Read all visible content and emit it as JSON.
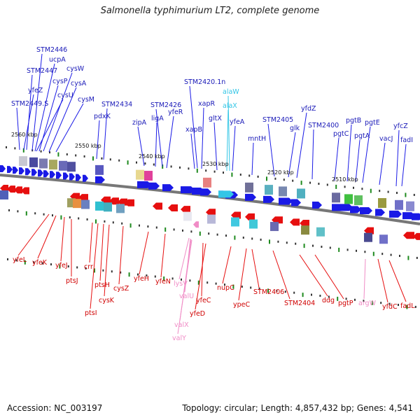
{
  "title": "Salmonella typhimurium LT2, complete genome",
  "footer": {
    "accession": "Accession: NC_003197",
    "summary": "Topology: circular; Length: 4,857,432 bp; Genes: 4,541"
  },
  "colors": {
    "forward": "#1a1ae6",
    "reverse": "#e60f0f",
    "trna": "#33c6e6",
    "trna_rev": "#f08cc6",
    "backbone": "#777777",
    "marker_green": "#1f8a1f"
  },
  "kbp_ticks": [
    "2560 kbp",
    "2550 kbp",
    "2540 kbp",
    "2530 kbp",
    "2520 kbp",
    "2510 kbp"
  ],
  "top_labels": [
    "STM2446",
    "ucpA",
    "STM2447",
    "cysW",
    "yfeZ",
    "cysP",
    "cysA",
    "cysU",
    "STM2449.S",
    "cysM",
    "pdxK",
    "STM2434",
    "STM2426",
    "yfeR",
    "zipA",
    "ligA",
    "STM2420.1n",
    "xapR",
    "xapB",
    "gltX",
    "alaW",
    "alaX",
    "yfeA",
    "mntH",
    "STM2405",
    "glk",
    "yfdZ",
    "STM2400",
    "pgtC",
    "pgtB",
    "pgtA",
    "pgtE",
    "vacJ",
    "yfcZ",
    "fadI"
  ],
  "bottom_labels": [
    "yfeL",
    "yfeK",
    "yfeJ",
    "ptsJ",
    "crr",
    "ptsI",
    "ptsH",
    "cysK",
    "cysZ",
    "yfeH",
    "yfeN",
    "lysV",
    "valU",
    "valX",
    "valY",
    "yfeC",
    "yfeD",
    "nupC",
    "ypeC",
    "STM2406",
    "STM2404",
    "ddg",
    "pgtP",
    "argW",
    "yfdC",
    "fadL"
  ]
}
